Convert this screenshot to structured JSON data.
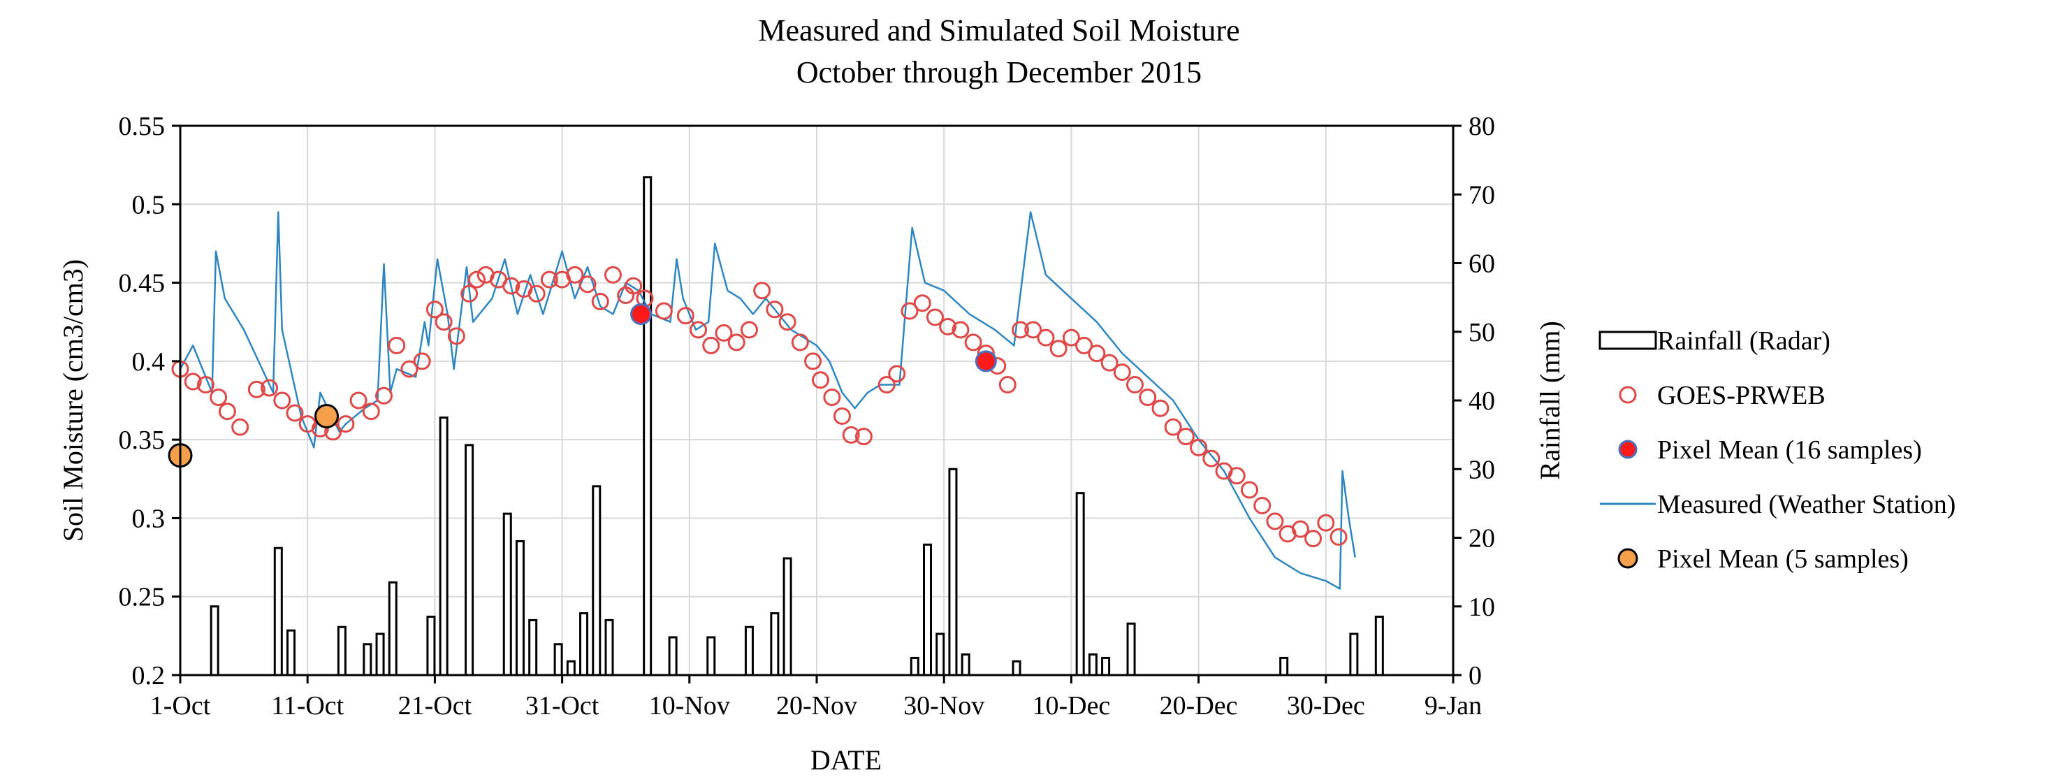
{
  "chart_data": {
    "type": "combo",
    "title": "Measured and Simulated Soil Moisture",
    "subtitle": "October through December 2015",
    "xlabel": "DATE",
    "ylabel": "Soil Moisture (cm3/cm3)",
    "y2label": "Rainfall (mm)",
    "x_range_days": [
      0,
      100
    ],
    "ylim": [
      0.2,
      0.55
    ],
    "y2lim": [
      0,
      80
    ],
    "x_ticks": [
      {
        "day": 0,
        "label": "1-Oct"
      },
      {
        "day": 10,
        "label": "11-Oct"
      },
      {
        "day": 20,
        "label": "21-Oct"
      },
      {
        "day": 30,
        "label": "31-Oct"
      },
      {
        "day": 40,
        "label": "10-Nov"
      },
      {
        "day": 50,
        "label": "20-Nov"
      },
      {
        "day": 60,
        "label": "30-Nov"
      },
      {
        "day": 70,
        "label": "10-Dec"
      },
      {
        "day": 80,
        "label": "20-Dec"
      },
      {
        "day": 90,
        "label": "30-Dec"
      },
      {
        "day": 100,
        "label": "9-Jan"
      }
    ],
    "y_ticks": [
      "0.2",
      "0.25",
      "0.3",
      "0.35",
      "0.4",
      "0.45",
      "0.5",
      "0.55"
    ],
    "y2_ticks": [
      "0",
      "10",
      "20",
      "30",
      "40",
      "50",
      "60",
      "70",
      "80"
    ],
    "colors": {
      "rain": "#000000",
      "goes": "#e04848",
      "pixel16": "#ff1a1a",
      "pixel16_edge": "#4a6fc0",
      "measured": "#2e86c1",
      "pixel5": "#f4a04a"
    },
    "legend": [
      {
        "key": "rain",
        "label": "Rainfall (Radar)"
      },
      {
        "key": "goes",
        "label": "GOES-PRWEB"
      },
      {
        "key": "pixel16",
        "label": "Pixel Mean (16 samples)"
      },
      {
        "key": "measured",
        "label": "Measured (Weather Station)"
      },
      {
        "key": "pixel5",
        "label": "Pixel Mean (5 samples)"
      }
    ],
    "series": [
      {
        "name": "Rainfall (Radar)",
        "type": "bar",
        "axis": "y2",
        "points": [
          [
            2.7,
            10
          ],
          [
            7.7,
            18.5
          ],
          [
            8.7,
            6.5
          ],
          [
            12.7,
            7
          ],
          [
            14.7,
            4.5
          ],
          [
            15.7,
            6
          ],
          [
            16.7,
            13.5
          ],
          [
            19.7,
            8.5
          ],
          [
            20.7,
            37.5
          ],
          [
            22.7,
            33.5
          ],
          [
            25.7,
            23.5
          ],
          [
            26.7,
            19.5
          ],
          [
            27.7,
            8
          ],
          [
            29.7,
            4.5
          ],
          [
            30.7,
            2
          ],
          [
            31.7,
            9
          ],
          [
            32.7,
            27.5
          ],
          [
            33.7,
            8
          ],
          [
            36.7,
            72.5
          ],
          [
            38.7,
            5.5
          ],
          [
            41.7,
            5.5
          ],
          [
            44.7,
            7
          ],
          [
            46.7,
            9
          ],
          [
            47.7,
            17
          ],
          [
            57.7,
            2.5
          ],
          [
            58.7,
            19
          ],
          [
            59.7,
            6
          ],
          [
            60.7,
            30
          ],
          [
            61.7,
            3
          ],
          [
            65.7,
            2
          ],
          [
            70.7,
            26.5
          ],
          [
            71.7,
            3
          ],
          [
            72.7,
            2.5
          ],
          [
            74.7,
            7.5
          ],
          [
            86.7,
            2.5
          ],
          [
            92.2,
            6
          ],
          [
            94.2,
            8.5
          ]
        ]
      },
      {
        "name": "GOES-PRWEB",
        "type": "scatter",
        "axis": "y",
        "points": [
          [
            0,
            0.395
          ],
          [
            1,
            0.387
          ],
          [
            2,
            0.385
          ],
          [
            3,
            0.377
          ],
          [
            3.7,
            0.368
          ],
          [
            4.7,
            0.358
          ],
          [
            6,
            0.382
          ],
          [
            7,
            0.383
          ],
          [
            8,
            0.375
          ],
          [
            9,
            0.367
          ],
          [
            10,
            0.36
          ],
          [
            11,
            0.357
          ],
          [
            12,
            0.355
          ],
          [
            13,
            0.36
          ],
          [
            14,
            0.375
          ],
          [
            15,
            0.368
          ],
          [
            16,
            0.378
          ],
          [
            17,
            0.41
          ],
          [
            18,
            0.395
          ],
          [
            19,
            0.4
          ],
          [
            20,
            0.433
          ],
          [
            20.7,
            0.425
          ],
          [
            21.7,
            0.416
          ],
          [
            22.7,
            0.443
          ],
          [
            23.3,
            0.452
          ],
          [
            24,
            0.455
          ],
          [
            25,
            0.452
          ],
          [
            26,
            0.448
          ],
          [
            27,
            0.446
          ],
          [
            28,
            0.443
          ],
          [
            29,
            0.452
          ],
          [
            30,
            0.452
          ],
          [
            31,
            0.455
          ],
          [
            32,
            0.449
          ],
          [
            33,
            0.438
          ],
          [
            34,
            0.455
          ],
          [
            35,
            0.442
          ],
          [
            35.6,
            0.448
          ],
          [
            36.5,
            0.44
          ],
          [
            38,
            0.432
          ],
          [
            39.7,
            0.429
          ],
          [
            40.7,
            0.42
          ],
          [
            41.7,
            0.41
          ],
          [
            42.7,
            0.418
          ],
          [
            43.7,
            0.412
          ],
          [
            44.7,
            0.42
          ],
          [
            45.7,
            0.445
          ],
          [
            46.7,
            0.433
          ],
          [
            47.7,
            0.425
          ],
          [
            48.7,
            0.412
          ],
          [
            49.7,
            0.4
          ],
          [
            50.3,
            0.388
          ],
          [
            51.2,
            0.377
          ],
          [
            52,
            0.365
          ],
          [
            52.7,
            0.353
          ],
          [
            53.7,
            0.352
          ],
          [
            55.5,
            0.385
          ],
          [
            56.3,
            0.392
          ],
          [
            57.3,
            0.432
          ],
          [
            58.3,
            0.437
          ],
          [
            59.3,
            0.428
          ],
          [
            60.3,
            0.422
          ],
          [
            61.3,
            0.42
          ],
          [
            62.3,
            0.412
          ],
          [
            63.3,
            0.405
          ],
          [
            64.2,
            0.397
          ],
          [
            65,
            0.385
          ],
          [
            66,
            0.42
          ],
          [
            67,
            0.42
          ],
          [
            68,
            0.415
          ],
          [
            69,
            0.408
          ],
          [
            70,
            0.415
          ],
          [
            71,
            0.41
          ],
          [
            72,
            0.405
          ],
          [
            73,
            0.399
          ],
          [
            74,
            0.393
          ],
          [
            75,
            0.385
          ],
          [
            76,
            0.377
          ],
          [
            77,
            0.37
          ],
          [
            78,
            0.358
          ],
          [
            79,
            0.352
          ],
          [
            80,
            0.345
          ],
          [
            81,
            0.338
          ],
          [
            82,
            0.33
          ],
          [
            83,
            0.327
          ],
          [
            84,
            0.318
          ],
          [
            85,
            0.308
          ],
          [
            86,
            0.298
          ],
          [
            87,
            0.29
          ],
          [
            88,
            0.293
          ],
          [
            89,
            0.287
          ],
          [
            90,
            0.297
          ],
          [
            91,
            0.288
          ]
        ]
      },
      {
        "name": "Pixel Mean (16 samples)",
        "type": "scatter",
        "axis": "y",
        "points": [
          [
            36.2,
            0.43
          ],
          [
            63.3,
            0.4
          ]
        ]
      },
      {
        "name": "Measured (Weather Station)",
        "type": "line",
        "axis": "y",
        "points": [
          [
            0,
            0.395
          ],
          [
            1,
            0.41
          ],
          [
            2.5,
            0.38
          ],
          [
            2.8,
            0.47
          ],
          [
            3.5,
            0.44
          ],
          [
            5,
            0.42
          ],
          [
            7.3,
            0.38
          ],
          [
            7.7,
            0.495
          ],
          [
            8,
            0.42
          ],
          [
            9.5,
            0.365
          ],
          [
            10.5,
            0.345
          ],
          [
            11,
            0.38
          ],
          [
            12.5,
            0.355
          ],
          [
            13,
            0.36
          ],
          [
            14.5,
            0.37
          ],
          [
            15.5,
            0.375
          ],
          [
            16,
            0.462
          ],
          [
            16.5,
            0.38
          ],
          [
            17,
            0.395
          ],
          [
            18.5,
            0.39
          ],
          [
            19.2,
            0.425
          ],
          [
            19.5,
            0.41
          ],
          [
            20.2,
            0.465
          ],
          [
            21,
            0.43
          ],
          [
            21.5,
            0.395
          ],
          [
            22.5,
            0.46
          ],
          [
            23,
            0.425
          ],
          [
            24.5,
            0.44
          ],
          [
            25.5,
            0.465
          ],
          [
            26.5,
            0.43
          ],
          [
            27.5,
            0.455
          ],
          [
            28.5,
            0.43
          ],
          [
            30,
            0.47
          ],
          [
            31,
            0.44
          ],
          [
            32,
            0.46
          ],
          [
            33,
            0.435
          ],
          [
            34,
            0.43
          ],
          [
            35,
            0.45
          ],
          [
            36,
            0.445
          ],
          [
            37,
            0.43
          ],
          [
            38.5,
            0.425
          ],
          [
            39,
            0.465
          ],
          [
            39.5,
            0.44
          ],
          [
            40.5,
            0.42
          ],
          [
            41.5,
            0.425
          ],
          [
            42,
            0.475
          ],
          [
            43,
            0.445
          ],
          [
            44,
            0.44
          ],
          [
            45,
            0.43
          ],
          [
            46,
            0.44
          ],
          [
            47,
            0.43
          ],
          [
            48,
            0.42
          ],
          [
            49,
            0.415
          ],
          [
            50,
            0.41
          ],
          [
            51,
            0.4
          ],
          [
            52,
            0.38
          ],
          [
            53,
            0.37
          ],
          [
            54,
            0.38
          ],
          [
            55,
            0.385
          ],
          [
            56.5,
            0.385
          ],
          [
            57.5,
            0.485
          ],
          [
            58.5,
            0.45
          ],
          [
            60,
            0.445
          ],
          [
            62,
            0.43
          ],
          [
            64,
            0.42
          ],
          [
            65.5,
            0.41
          ],
          [
            66.8,
            0.495
          ],
          [
            68,
            0.455
          ],
          [
            70,
            0.44
          ],
          [
            72,
            0.425
          ],
          [
            74,
            0.405
          ],
          [
            76,
            0.39
          ],
          [
            78,
            0.375
          ],
          [
            80,
            0.35
          ],
          [
            82,
            0.33
          ],
          [
            84,
            0.3
          ],
          [
            86,
            0.275
          ],
          [
            88,
            0.265
          ],
          [
            90,
            0.26
          ],
          [
            91.1,
            0.255
          ],
          [
            91.3,
            0.33
          ],
          [
            91.8,
            0.3
          ],
          [
            92.3,
            0.275
          ]
        ]
      },
      {
        "name": "Pixel Mean (5 samples)",
        "type": "scatter",
        "axis": "y",
        "points": [
          [
            0,
            0.34
          ],
          [
            11.5,
            0.365
          ]
        ]
      }
    ]
  }
}
